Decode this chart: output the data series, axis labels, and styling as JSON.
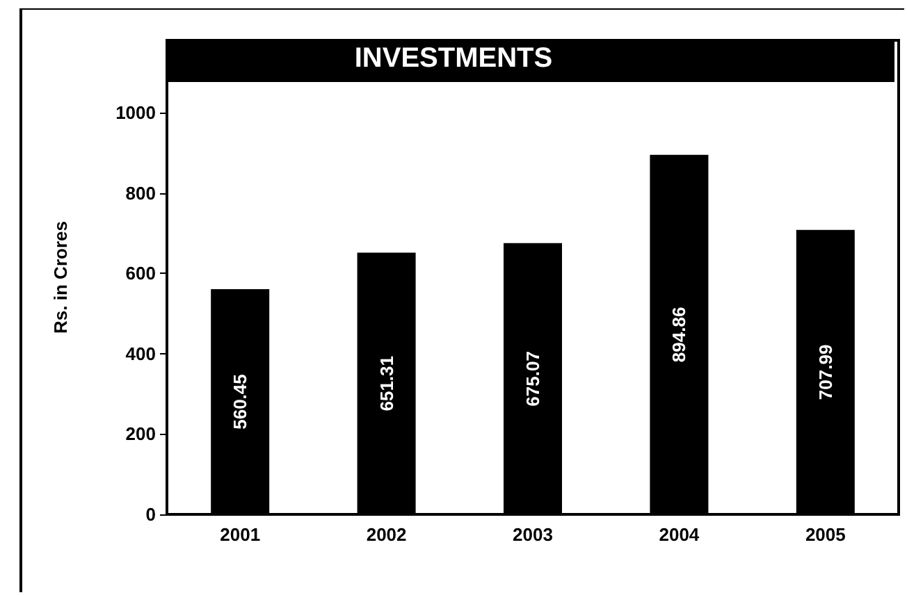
{
  "chart_data": {
    "type": "bar",
    "title": "INVESTMENTS",
    "ylabel": "Rs. in Crores",
    "categories": [
      "2001",
      "2002",
      "2003",
      "2004",
      "2005"
    ],
    "values": [
      560.45,
      651.31,
      675.07,
      894.86,
      707.99
    ],
    "color": "#000000",
    "ylim": [
      0,
      1180
    ],
    "yticks": [
      0,
      200,
      400,
      600,
      800,
      1000
    ],
    "data_labels": true,
    "grid": false
  }
}
